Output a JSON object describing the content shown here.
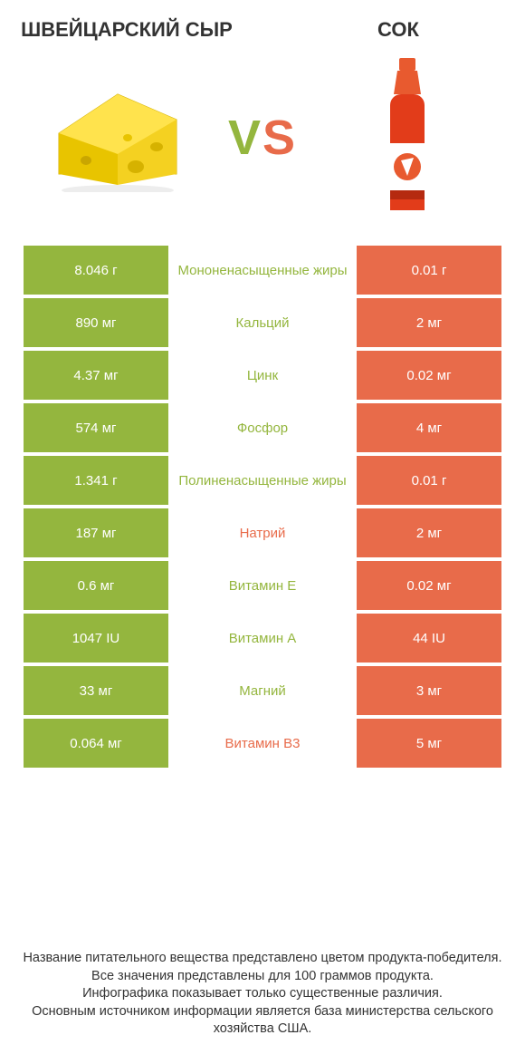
{
  "colors": {
    "green": "#94b63e",
    "orange": "#e86b4a",
    "background": "#ffffff",
    "text": "#333333"
  },
  "header": {
    "left_title": "ШВЕЙЦАРСКИЙ СЫР",
    "right_title": "СОК",
    "vs_v": "V",
    "vs_s": "S"
  },
  "images": {
    "left_icon": "cheese-wedge",
    "right_icon": "sports-drink-bottle"
  },
  "table": {
    "left_bg": "green",
    "right_bg": "orange",
    "rows": [
      {
        "left": "8.046 г",
        "label": "Мононенасыщенные жиры",
        "right": "0.01 г",
        "winner": "left"
      },
      {
        "left": "890 мг",
        "label": "Кальций",
        "right": "2 мг",
        "winner": "left"
      },
      {
        "left": "4.37 мг",
        "label": "Цинк",
        "right": "0.02 мг",
        "winner": "left"
      },
      {
        "left": "574 мг",
        "label": "Фосфор",
        "right": "4 мг",
        "winner": "left"
      },
      {
        "left": "1.341 г",
        "label": "Полиненасыщенные жиры",
        "right": "0.01 г",
        "winner": "left"
      },
      {
        "left": "187 мг",
        "label": "Натрий",
        "right": "2 мг",
        "winner": "right"
      },
      {
        "left": "0.6 мг",
        "label": "Витамин E",
        "right": "0.02 мг",
        "winner": "left"
      },
      {
        "left": "1047 IU",
        "label": "Витамин A",
        "right": "44 IU",
        "winner": "left"
      },
      {
        "left": "33 мг",
        "label": "Магний",
        "right": "3 мг",
        "winner": "left"
      },
      {
        "left": "0.064 мг",
        "label": "Витамин B3",
        "right": "5 мг",
        "winner": "right"
      }
    ]
  },
  "footnote": {
    "line1": "Название питательного вещества представлено цветом продукта-победителя.",
    "line2": "Все значения представлены для 100 граммов продукта.",
    "line3": "Инфографика показывает только существенные различия.",
    "line4": "Основным источником информации является база министерства сельского хозяйства США."
  }
}
